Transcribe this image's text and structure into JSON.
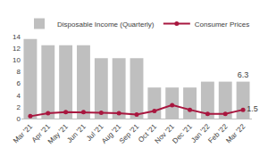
{
  "chart_data": {
    "type": "bar",
    "categories": [
      "Mar '21",
      "Apr '21",
      "May '21",
      "Jun '21",
      "Jul '21",
      "Aug '21",
      "Sep '21",
      "Oct '21",
      "Nov '21",
      "Dec '21",
      "Jan '22",
      "Feb '22",
      "Mar '22"
    ],
    "series": [
      {
        "name": "Disposable Income (Quarterly)",
        "type": "bar",
        "color": "#bfbfbf",
        "values": [
          13.6,
          12.5,
          12.5,
          12.5,
          10.3,
          10.3,
          10.3,
          5.3,
          5.3,
          5.3,
          6.3,
          6.3,
          6.3
        ],
        "value_labels": [
          null,
          null,
          null,
          null,
          null,
          null,
          null,
          null,
          null,
          null,
          null,
          null,
          "6.3"
        ]
      },
      {
        "name": "Consumer Prices",
        "type": "line",
        "color": "#a8173f",
        "marker": "circle",
        "values": [
          0.4,
          0.9,
          1.1,
          1.1,
          1.0,
          0.9,
          0.7,
          1.3,
          2.3,
          1.5,
          0.8,
          0.8,
          1.5
        ],
        "value_labels": [
          null,
          null,
          null,
          null,
          null,
          null,
          null,
          null,
          null,
          null,
          null,
          null,
          "1.5"
        ]
      }
    ],
    "ylim": [
      0,
      14
    ],
    "yticks": [
      0,
      2,
      4,
      6,
      8,
      10,
      12,
      14
    ],
    "grid": false,
    "legend": "top left"
  }
}
